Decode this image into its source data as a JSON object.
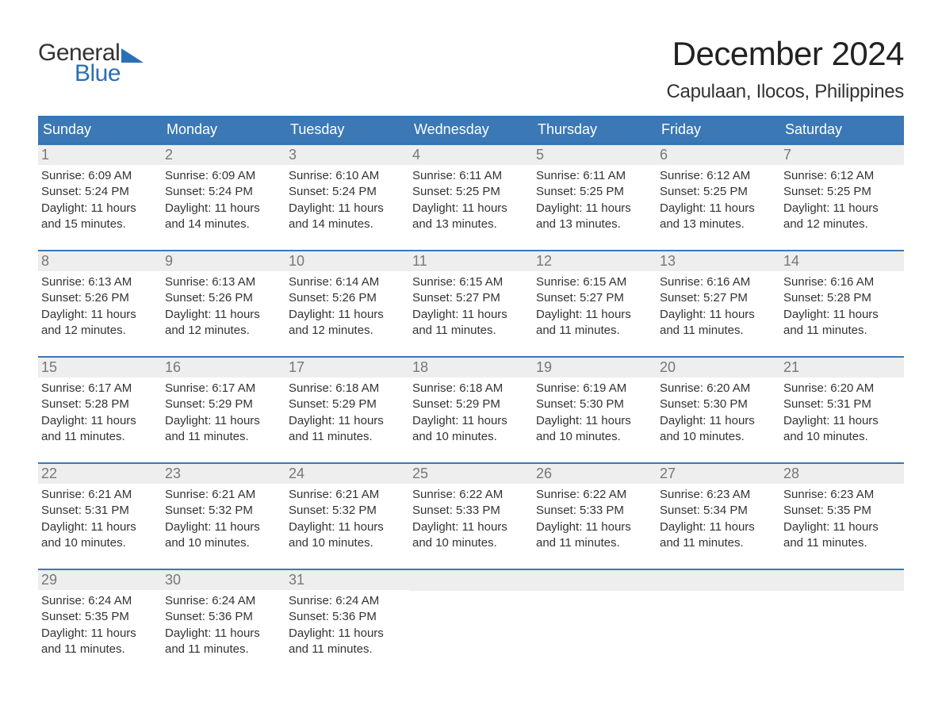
{
  "brand": {
    "text_general": "General",
    "text_blue": "Blue",
    "brand_color": "#2a6fb4"
  },
  "header": {
    "month_title": "December 2024",
    "location": "Capulaan, Ilocos, Philippines"
  },
  "colors": {
    "header_bg": "#3b78b5",
    "header_text": "#ffffff",
    "week_rule": "#3b78b5",
    "daynum_bg": "#eeeeee",
    "daynum_text": "#777777",
    "body_text": "#333333",
    "page_bg": "#ffffff"
  },
  "typography": {
    "title_fontsize": 42,
    "location_fontsize": 24,
    "dow_fontsize": 18,
    "daynum_fontsize": 18,
    "body_fontsize": 15
  },
  "days_of_week": [
    "Sunday",
    "Monday",
    "Tuesday",
    "Wednesday",
    "Thursday",
    "Friday",
    "Saturday"
  ],
  "weeks": [
    [
      {
        "n": "1",
        "sunrise": "Sunrise: 6:09 AM",
        "sunset": "Sunset: 5:24 PM",
        "daylight1": "Daylight: 11 hours",
        "daylight2": "and 15 minutes."
      },
      {
        "n": "2",
        "sunrise": "Sunrise: 6:09 AM",
        "sunset": "Sunset: 5:24 PM",
        "daylight1": "Daylight: 11 hours",
        "daylight2": "and 14 minutes."
      },
      {
        "n": "3",
        "sunrise": "Sunrise: 6:10 AM",
        "sunset": "Sunset: 5:24 PM",
        "daylight1": "Daylight: 11 hours",
        "daylight2": "and 14 minutes."
      },
      {
        "n": "4",
        "sunrise": "Sunrise: 6:11 AM",
        "sunset": "Sunset: 5:25 PM",
        "daylight1": "Daylight: 11 hours",
        "daylight2": "and 13 minutes."
      },
      {
        "n": "5",
        "sunrise": "Sunrise: 6:11 AM",
        "sunset": "Sunset: 5:25 PM",
        "daylight1": "Daylight: 11 hours",
        "daylight2": "and 13 minutes."
      },
      {
        "n": "6",
        "sunrise": "Sunrise: 6:12 AM",
        "sunset": "Sunset: 5:25 PM",
        "daylight1": "Daylight: 11 hours",
        "daylight2": "and 13 minutes."
      },
      {
        "n": "7",
        "sunrise": "Sunrise: 6:12 AM",
        "sunset": "Sunset: 5:25 PM",
        "daylight1": "Daylight: 11 hours",
        "daylight2": "and 12 minutes."
      }
    ],
    [
      {
        "n": "8",
        "sunrise": "Sunrise: 6:13 AM",
        "sunset": "Sunset: 5:26 PM",
        "daylight1": "Daylight: 11 hours",
        "daylight2": "and 12 minutes."
      },
      {
        "n": "9",
        "sunrise": "Sunrise: 6:13 AM",
        "sunset": "Sunset: 5:26 PM",
        "daylight1": "Daylight: 11 hours",
        "daylight2": "and 12 minutes."
      },
      {
        "n": "10",
        "sunrise": "Sunrise: 6:14 AM",
        "sunset": "Sunset: 5:26 PM",
        "daylight1": "Daylight: 11 hours",
        "daylight2": "and 12 minutes."
      },
      {
        "n": "11",
        "sunrise": "Sunrise: 6:15 AM",
        "sunset": "Sunset: 5:27 PM",
        "daylight1": "Daylight: 11 hours",
        "daylight2": "and 11 minutes."
      },
      {
        "n": "12",
        "sunrise": "Sunrise: 6:15 AM",
        "sunset": "Sunset: 5:27 PM",
        "daylight1": "Daylight: 11 hours",
        "daylight2": "and 11 minutes."
      },
      {
        "n": "13",
        "sunrise": "Sunrise: 6:16 AM",
        "sunset": "Sunset: 5:27 PM",
        "daylight1": "Daylight: 11 hours",
        "daylight2": "and 11 minutes."
      },
      {
        "n": "14",
        "sunrise": "Sunrise: 6:16 AM",
        "sunset": "Sunset: 5:28 PM",
        "daylight1": "Daylight: 11 hours",
        "daylight2": "and 11 minutes."
      }
    ],
    [
      {
        "n": "15",
        "sunrise": "Sunrise: 6:17 AM",
        "sunset": "Sunset: 5:28 PM",
        "daylight1": "Daylight: 11 hours",
        "daylight2": "and 11 minutes."
      },
      {
        "n": "16",
        "sunrise": "Sunrise: 6:17 AM",
        "sunset": "Sunset: 5:29 PM",
        "daylight1": "Daylight: 11 hours",
        "daylight2": "and 11 minutes."
      },
      {
        "n": "17",
        "sunrise": "Sunrise: 6:18 AM",
        "sunset": "Sunset: 5:29 PM",
        "daylight1": "Daylight: 11 hours",
        "daylight2": "and 11 minutes."
      },
      {
        "n": "18",
        "sunrise": "Sunrise: 6:18 AM",
        "sunset": "Sunset: 5:29 PM",
        "daylight1": "Daylight: 11 hours",
        "daylight2": "and 10 minutes."
      },
      {
        "n": "19",
        "sunrise": "Sunrise: 6:19 AM",
        "sunset": "Sunset: 5:30 PM",
        "daylight1": "Daylight: 11 hours",
        "daylight2": "and 10 minutes."
      },
      {
        "n": "20",
        "sunrise": "Sunrise: 6:20 AM",
        "sunset": "Sunset: 5:30 PM",
        "daylight1": "Daylight: 11 hours",
        "daylight2": "and 10 minutes."
      },
      {
        "n": "21",
        "sunrise": "Sunrise: 6:20 AM",
        "sunset": "Sunset: 5:31 PM",
        "daylight1": "Daylight: 11 hours",
        "daylight2": "and 10 minutes."
      }
    ],
    [
      {
        "n": "22",
        "sunrise": "Sunrise: 6:21 AM",
        "sunset": "Sunset: 5:31 PM",
        "daylight1": "Daylight: 11 hours",
        "daylight2": "and 10 minutes."
      },
      {
        "n": "23",
        "sunrise": "Sunrise: 6:21 AM",
        "sunset": "Sunset: 5:32 PM",
        "daylight1": "Daylight: 11 hours",
        "daylight2": "and 10 minutes."
      },
      {
        "n": "24",
        "sunrise": "Sunrise: 6:21 AM",
        "sunset": "Sunset: 5:32 PM",
        "daylight1": "Daylight: 11 hours",
        "daylight2": "and 10 minutes."
      },
      {
        "n": "25",
        "sunrise": "Sunrise: 6:22 AM",
        "sunset": "Sunset: 5:33 PM",
        "daylight1": "Daylight: 11 hours",
        "daylight2": "and 10 minutes."
      },
      {
        "n": "26",
        "sunrise": "Sunrise: 6:22 AM",
        "sunset": "Sunset: 5:33 PM",
        "daylight1": "Daylight: 11 hours",
        "daylight2": "and 11 minutes."
      },
      {
        "n": "27",
        "sunrise": "Sunrise: 6:23 AM",
        "sunset": "Sunset: 5:34 PM",
        "daylight1": "Daylight: 11 hours",
        "daylight2": "and 11 minutes."
      },
      {
        "n": "28",
        "sunrise": "Sunrise: 6:23 AM",
        "sunset": "Sunset: 5:35 PM",
        "daylight1": "Daylight: 11 hours",
        "daylight2": "and 11 minutes."
      }
    ],
    [
      {
        "n": "29",
        "sunrise": "Sunrise: 6:24 AM",
        "sunset": "Sunset: 5:35 PM",
        "daylight1": "Daylight: 11 hours",
        "daylight2": "and 11 minutes."
      },
      {
        "n": "30",
        "sunrise": "Sunrise: 6:24 AM",
        "sunset": "Sunset: 5:36 PM",
        "daylight1": "Daylight: 11 hours",
        "daylight2": "and 11 minutes."
      },
      {
        "n": "31",
        "sunrise": "Sunrise: 6:24 AM",
        "sunset": "Sunset: 5:36 PM",
        "daylight1": "Daylight: 11 hours",
        "daylight2": "and 11 minutes."
      },
      null,
      null,
      null,
      null
    ]
  ]
}
